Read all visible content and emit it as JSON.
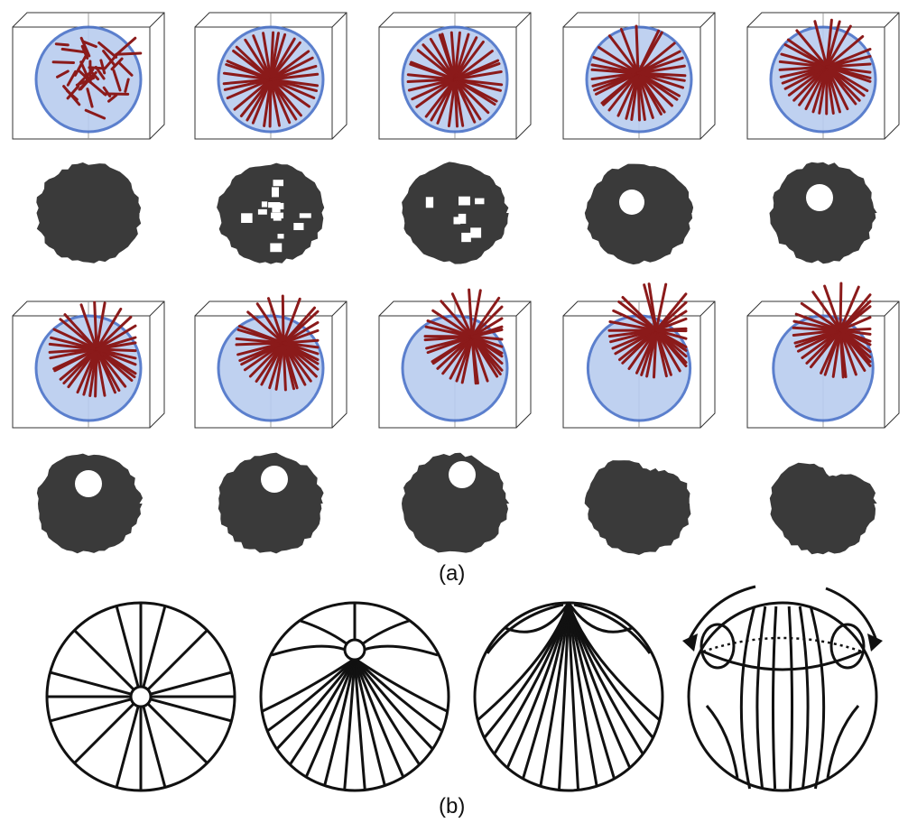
{
  "figure": {
    "panel_a_label": "(a)",
    "panel_b_label": "(b)",
    "colors": {
      "fiber": "#8b1a1a",
      "shell_fill": "#b9cdef",
      "shell_edge": "#4a72c8",
      "defect": "#6d86a8",
      "silhouette": "#3a3a3a",
      "box": "#333333",
      "line": "#111111"
    },
    "panel_a": {
      "rows": [
        {
          "kind": "render-3d",
          "panels": 5
        },
        {
          "kind": "cross-section",
          "panels": 5
        },
        {
          "kind": "render-3d",
          "panels": 5
        },
        {
          "kind": "cross-section",
          "panels": 5
        }
      ]
    },
    "panel_b": {
      "schematics": [
        {
          "name": "radial-defect-center"
        },
        {
          "name": "radial-defect-offset"
        },
        {
          "name": "defect-at-surface"
        },
        {
          "name": "bipolar-with-arrows"
        }
      ]
    }
  }
}
